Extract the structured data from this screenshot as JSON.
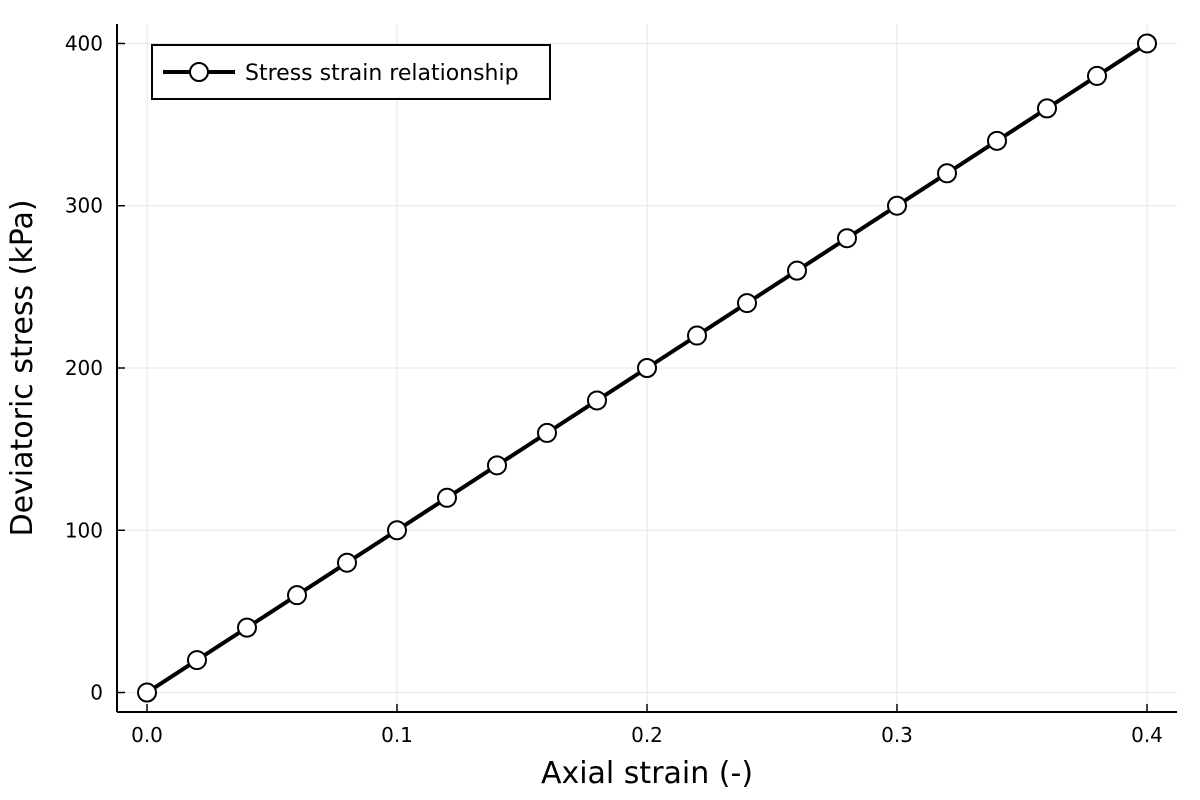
{
  "chart_data": {
    "type": "line",
    "title": "",
    "xlabel": "Axial strain (-)",
    "ylabel": "Deviatoric stress (kPa)",
    "xlim": [
      -0.012,
      0.412
    ],
    "ylim": [
      -12,
      412
    ],
    "grid": true,
    "legend_position": "top-left",
    "x_ticks": [
      0.0,
      0.1,
      0.2,
      0.3,
      0.4
    ],
    "x_tick_labels": [
      "0.0",
      "0.1",
      "0.2",
      "0.3",
      "0.4"
    ],
    "y_ticks": [
      0,
      100,
      200,
      300,
      400
    ],
    "y_tick_labels": [
      "0",
      "100",
      "200",
      "300",
      "400"
    ],
    "series": [
      {
        "name": "Stress strain relationship",
        "color": "#000000",
        "marker": "circle",
        "marker_fill": "#ffffff",
        "x": [
          0.0,
          0.02,
          0.04,
          0.06,
          0.08,
          0.1,
          0.12,
          0.14,
          0.16,
          0.18,
          0.2,
          0.22,
          0.24,
          0.26,
          0.28,
          0.3,
          0.32,
          0.34,
          0.36,
          0.38,
          0.4
        ],
        "y": [
          0,
          20,
          40,
          60,
          80,
          100,
          120,
          140,
          160,
          180,
          200,
          220,
          240,
          260,
          280,
          300,
          320,
          340,
          360,
          380,
          400
        ]
      }
    ]
  }
}
